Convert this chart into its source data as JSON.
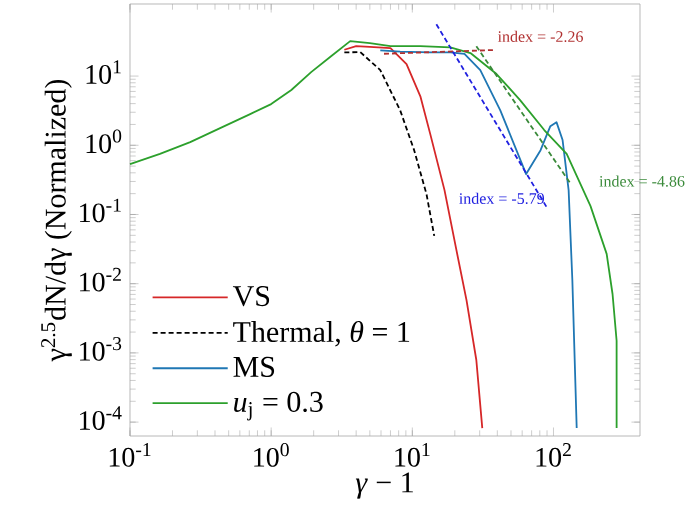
{
  "chart_data": {
    "type": "line",
    "xlabel": "*γ* − 1",
    "ylabel": "γ$^{2.5}$dN/dγ (Normalized)",
    "log": "xy",
    "legend": "bottom left",
    "marker": "none",
    "grid": false,
    "xlim": [
      0.1,
      410
    ],
    "ylim": [
      6.3e-05,
      110
    ],
    "xticks": [
      {
        "value": 0.1,
        "label": "10$^{-1}$"
      },
      {
        "value": 1,
        "label": "10$^{0}$"
      },
      {
        "value": 10,
        "label": "10$^{1}$"
      },
      {
        "value": 100,
        "label": "10$^{2}$"
      }
    ],
    "yticks": [
      {
        "value": 0.0001,
        "label": "10$^{-4}$"
      },
      {
        "value": 0.001,
        "label": "10$^{-3}$"
      },
      {
        "value": 0.01,
        "label": "10$^{-2}$"
      },
      {
        "value": 0.1,
        "label": "10$^{-1}$"
      },
      {
        "value": 1,
        "label": "10$^{0}$"
      },
      {
        "value": 10,
        "label": "10$^{1}$"
      }
    ],
    "series": [
      {
        "name": "VS",
        "color": "#d62728",
        "line_style": "solid",
        "x": [
          3.3,
          4.0,
          5.0,
          7.0,
          9.1,
          11.4,
          13.4,
          16.9,
          20.5,
          24.2,
          28.4,
          31.3
        ],
        "values": [
          24,
          27,
          26.5,
          25.4,
          14.9,
          5.1,
          1.45,
          0.225,
          0.031,
          0.0058,
          0.00079,
          8.2e-05
        ]
      },
      {
        "name": "Thermal, *θ* = 1",
        "color": "#000000",
        "line_style": "dashed",
        "x": [
          3.3,
          4.28,
          5.93,
          8.2,
          10.3,
          12.6,
          14.3
        ],
        "values": [
          22,
          22.2,
          12.2,
          3.2,
          0.85,
          0.197,
          0.049
        ]
      },
      {
        "name": "MS",
        "color": "#1f77b4",
        "line_style": "solid",
        "x": [
          5.93,
          8.2,
          13.4,
          18.6,
          23.4,
          30.3,
          42,
          64,
          81,
          95,
          105,
          116,
          128,
          136,
          146
        ],
        "values": [
          23.5,
          22.5,
          22,
          22,
          21,
          12.2,
          3.2,
          0.384,
          0.85,
          1.89,
          2.16,
          1.19,
          0.225,
          0.0113,
          8.2e-05
        ]
      },
      {
        "name": "*u*$_{j}$ = 0.3",
        "color": "#2ca02c",
        "line_style": "solid",
        "x": [
          0.1,
          0.163,
          0.267,
          0.435,
          0.71,
          1.0,
          1.39,
          1.92,
          2.67,
          3.63,
          5.0,
          7.0,
          11.4,
          18.6,
          25.8,
          39.5,
          58,
          86,
          124,
          183,
          238,
          262,
          280,
          280
        ],
        "values": [
          0.535,
          0.75,
          1.11,
          1.77,
          2.82,
          3.94,
          6.3,
          11.4,
          19.5,
          32,
          30,
          27,
          27,
          26,
          21.5,
          10.7,
          4.5,
          1.66,
          0.75,
          0.132,
          0.027,
          0.0071,
          0.0015,
          8.2e-05
        ]
      },
      {
        "color": "#b03030",
        "line_style": "dashed",
        "x": [
          6.3,
          38
        ],
        "values": [
          21,
          23.8
        ]
      },
      {
        "color": "#2020e0",
        "line_style": "dashed",
        "x": [
          14.8,
          89
        ],
        "values": [
          56,
          0.13
        ]
      },
      {
        "color": "#3a8a3a",
        "line_style": "dashed",
        "x": [
          28.4,
          132
        ],
        "values": [
          27,
          0.28
        ]
      }
    ],
    "annotations": [
      "index = -2.26",
      "index = -5.79",
      "index = -4.86"
    ]
  }
}
